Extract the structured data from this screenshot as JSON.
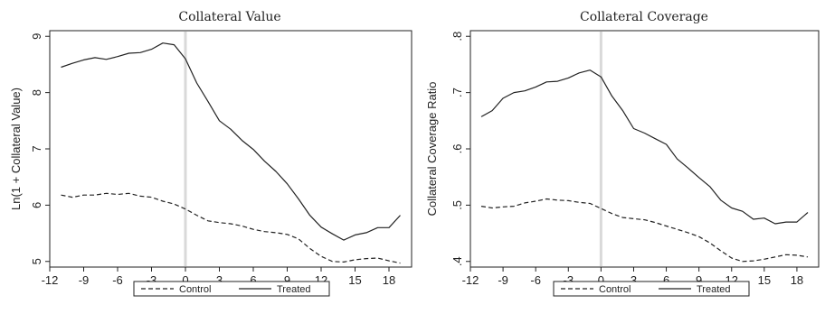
{
  "chart_data": [
    {
      "type": "line",
      "title": "Collateral Value",
      "xlabel": "",
      "ylabel": "Ln(1 + Collateral Value)",
      "xlim": [
        -12,
        20
      ],
      "ylim": [
        4.9,
        9.1
      ],
      "xticks": [
        -12,
        -9,
        -6,
        -3,
        0,
        3,
        6,
        9,
        12,
        15,
        18
      ],
      "xtick_labels": [
        "-12",
        "-9",
        "-6",
        "-3",
        "0",
        "3",
        "6",
        "9",
        "12",
        "15",
        "18"
      ],
      "yticks": [
        5,
        6,
        7,
        8,
        9
      ],
      "ytick_labels": [
        "5",
        "6",
        "7",
        "8",
        "9"
      ],
      "vline_x": 0,
      "grid": false,
      "legend_position": "bottom",
      "x": [
        -11,
        -10,
        -9,
        -8,
        -7,
        -6,
        -5,
        -4,
        -3,
        -2,
        -1,
        0,
        1,
        2,
        3,
        4,
        5,
        6,
        7,
        8,
        9,
        10,
        11,
        12,
        13,
        14,
        15,
        16,
        17,
        18,
        19
      ],
      "series": [
        {
          "name": "Control",
          "style": "dashed",
          "values": [
            6.18,
            6.14,
            6.18,
            6.18,
            6.21,
            6.19,
            6.21,
            6.16,
            6.14,
            6.07,
            6.02,
            5.93,
            5.82,
            5.72,
            5.69,
            5.67,
            5.63,
            5.57,
            5.53,
            5.51,
            5.48,
            5.4,
            5.23,
            5.09,
            5.0,
            4.99,
            5.03,
            5.05,
            5.06,
            5.01,
            4.97
          ]
        },
        {
          "name": "Treated",
          "style": "solid",
          "values": [
            8.45,
            8.52,
            8.58,
            8.62,
            8.59,
            8.64,
            8.7,
            8.71,
            8.77,
            8.88,
            8.85,
            8.6,
            8.17,
            7.84,
            7.5,
            7.35,
            7.15,
            6.99,
            6.78,
            6.6,
            6.38,
            6.11,
            5.82,
            5.61,
            5.49,
            5.38,
            5.47,
            5.51,
            5.6,
            5.6,
            5.82
          ]
        }
      ]
    },
    {
      "type": "line",
      "title": "Collateral Coverage",
      "xlabel": "",
      "ylabel": "Collateral Coverage Ratio",
      "xlim": [
        -12,
        20
      ],
      "ylim": [
        0.39,
        0.81
      ],
      "xticks": [
        -12,
        -9,
        -6,
        -3,
        0,
        3,
        6,
        9,
        12,
        15,
        18
      ],
      "xtick_labels": [
        "-12",
        "-9",
        "-6",
        "-3",
        "0",
        "3",
        "6",
        "9",
        "12",
        "15",
        "18"
      ],
      "yticks": [
        0.4,
        0.5,
        0.6,
        0.7,
        0.8
      ],
      "ytick_labels": [
        ".4",
        ".5",
        ".6",
        ".7",
        ".8"
      ],
      "vline_x": 0,
      "grid": false,
      "legend_position": "bottom",
      "x": [
        -11,
        -10,
        -9,
        -8,
        -7,
        -6,
        -5,
        -4,
        -3,
        -2,
        -1,
        0,
        1,
        2,
        3,
        4,
        5,
        6,
        7,
        8,
        9,
        10,
        11,
        12,
        13,
        14,
        15,
        16,
        17,
        18,
        19
      ],
      "series": [
        {
          "name": "Control",
          "style": "dashed",
          "values": [
            0.498,
            0.495,
            0.497,
            0.498,
            0.504,
            0.507,
            0.511,
            0.509,
            0.508,
            0.505,
            0.503,
            0.494,
            0.485,
            0.478,
            0.476,
            0.474,
            0.469,
            0.463,
            0.457,
            0.451,
            0.444,
            0.433,
            0.419,
            0.406,
            0.4,
            0.401,
            0.404,
            0.408,
            0.412,
            0.411,
            0.408
          ]
        },
        {
          "name": "Treated",
          "style": "solid",
          "values": [
            0.657,
            0.668,
            0.69,
            0.7,
            0.703,
            0.71,
            0.719,
            0.72,
            0.726,
            0.735,
            0.74,
            0.728,
            0.694,
            0.668,
            0.636,
            0.628,
            0.618,
            0.608,
            0.582,
            0.566,
            0.549,
            0.533,
            0.509,
            0.495,
            0.489,
            0.475,
            0.477,
            0.467,
            0.47,
            0.47,
            0.487
          ]
        }
      ]
    }
  ],
  "colors": {
    "line": "#222222",
    "vline": "#d9d9d9",
    "frame": "#222222"
  }
}
